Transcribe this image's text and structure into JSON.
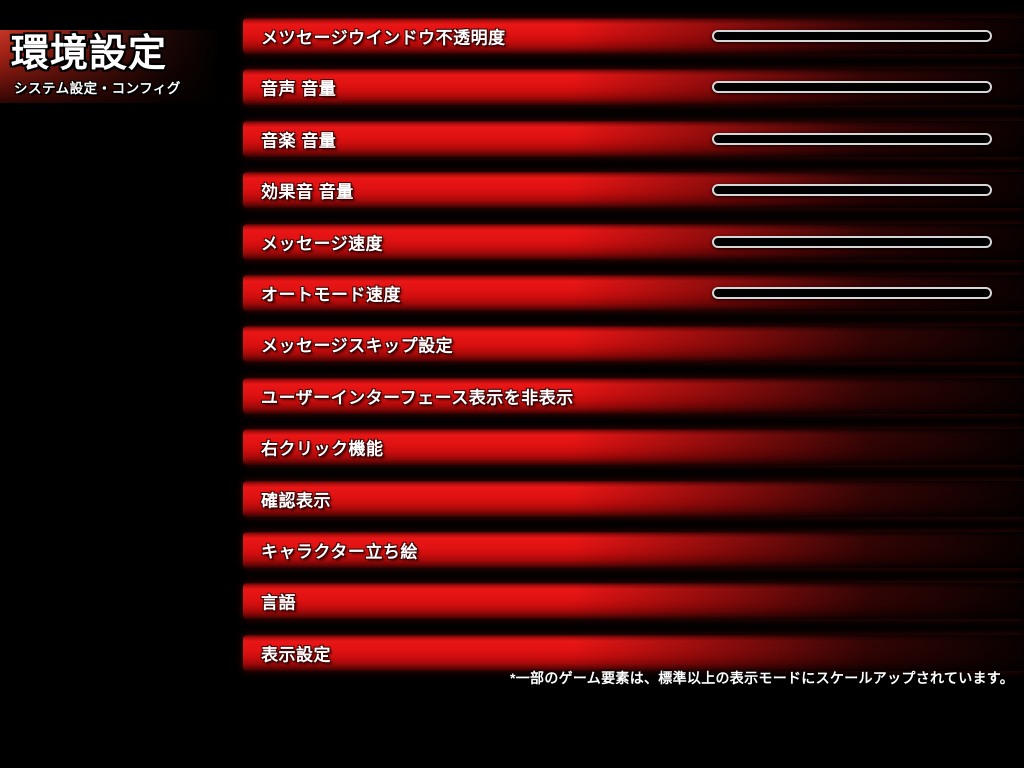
{
  "header": {
    "title": "環境設定",
    "subtitle": "システム設定・コンフィグ"
  },
  "settings": [
    {
      "label": "メツセージウインドウ不透明度",
      "has_slider": true
    },
    {
      "label": "音声 音量",
      "has_slider": true
    },
    {
      "label": "音楽 音量",
      "has_slider": true
    },
    {
      "label": "効果音 音量",
      "has_slider": true
    },
    {
      "label": "メッセージ速度",
      "has_slider": true
    },
    {
      "label": "オートモード速度",
      "has_slider": true
    },
    {
      "label": "メッセージスキップ設定",
      "has_slider": false
    },
    {
      "label": "ユーザーインターフェース表示を非表示",
      "has_slider": false
    },
    {
      "label": "右クリック機能",
      "has_slider": false
    },
    {
      "label": "確認表示",
      "has_slider": false
    },
    {
      "label": "キャラクター立ち絵",
      "has_slider": false
    },
    {
      "label": "言語",
      "has_slider": false
    },
    {
      "label": "表示設定",
      "has_slider": false
    }
  ],
  "footnote": "*一部のゲーム要素は、標準以上の表示モードにスケールアップされています。",
  "colors": {
    "background": "#000000",
    "bar_red": "#df1212",
    "bar_red_bright": "#ea1616",
    "title_red": "#c53528",
    "slider_border": "#d6d6d6",
    "slider_fill": "#000000",
    "text": "#ffffff"
  }
}
